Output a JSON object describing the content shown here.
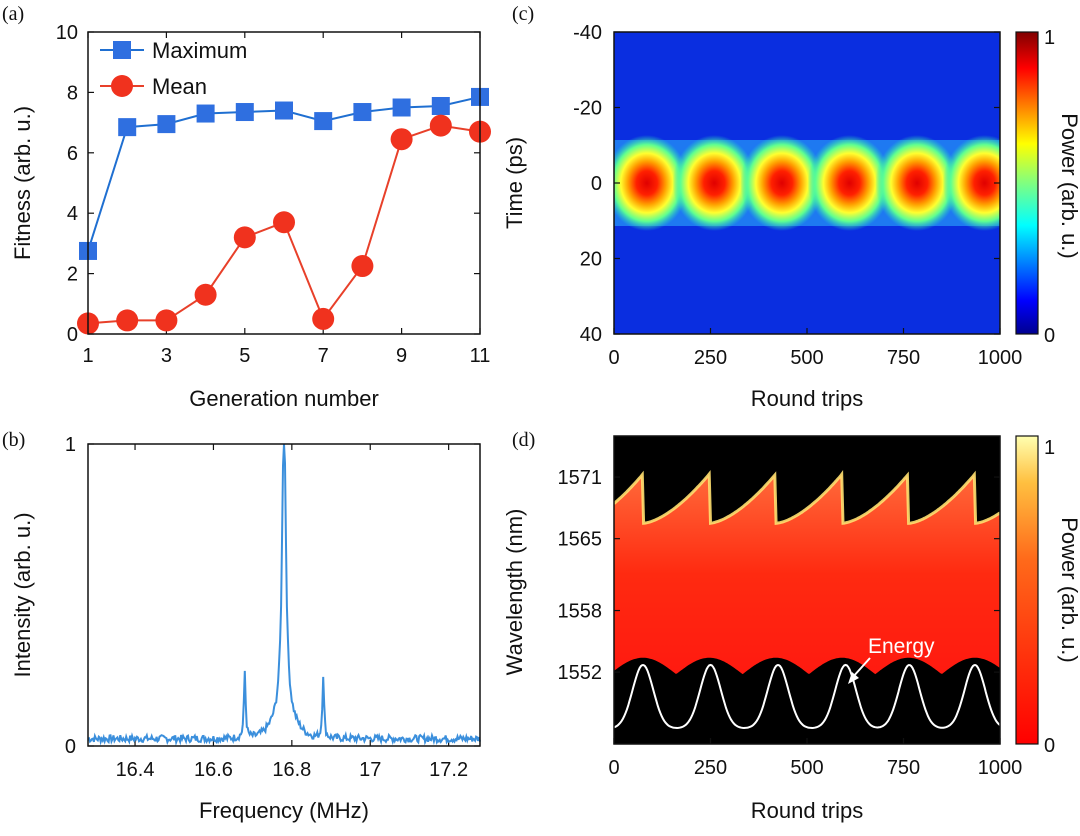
{
  "colors": {
    "maximum": "#1f6fd1",
    "maximum_marker": "#2f6fe0",
    "mean": "#e8402a",
    "mean_marker": "#f0321e",
    "spectrum": "#3b8fdc",
    "energy": "#ffffff",
    "jet_low": "#00008f",
    "jet_high": "#800000",
    "hot_low": "#ff0000",
    "hot_high": "#ffffb0"
  },
  "chart_data": [
    {
      "panel": "(a)",
      "type": "line",
      "xlabel": "Generation number",
      "ylabel": "Fitness (arb. u.)",
      "xlim": [
        1,
        11
      ],
      "ylim": [
        0,
        10
      ],
      "xticks": [
        "1",
        "3",
        "5",
        "7",
        "9",
        "11"
      ],
      "yticks": [
        "0",
        "2",
        "4",
        "6",
        "8",
        "10"
      ],
      "legend_position": "top-left",
      "x": [
        1,
        2,
        3,
        4,
        5,
        6,
        7,
        8,
        9,
        10,
        11
      ],
      "series": [
        {
          "name": "Maximum",
          "marker": "square",
          "values": [
            2.75,
            6.85,
            6.95,
            7.3,
            7.35,
            7.4,
            7.05,
            7.35,
            7.5,
            7.55,
            7.85
          ]
        },
        {
          "name": "Mean",
          "marker": "circle",
          "values": [
            0.35,
            0.45,
            0.45,
            1.3,
            3.2,
            3.7,
            0.5,
            2.25,
            6.45,
            6.9,
            6.7
          ]
        }
      ]
    },
    {
      "panel": "(b)",
      "type": "line",
      "xlabel": "Frequency (MHz)",
      "ylabel": "Intensity (arb. u.)",
      "xlim": [
        16.28,
        17.28
      ],
      "ylim": [
        0,
        1
      ],
      "xticks": [
        "16.4",
        "16.6",
        "16.8",
        "17",
        "17.2"
      ],
      "yticks": [
        "0",
        "1"
      ],
      "peaks": [
        {
          "frequency": 16.78,
          "intensity": 1.0
        },
        {
          "frequency": 16.68,
          "intensity": 0.22
        },
        {
          "frequency": 16.88,
          "intensity": 0.21
        }
      ],
      "noise_floor": 0.03
    },
    {
      "panel": "(c)",
      "type": "heatmap",
      "xlabel": "Round trips",
      "ylabel": "Time (ps)",
      "colorbar_label": "Power (arb. u.)",
      "colorbar_ticks": [
        "0",
        "1"
      ],
      "colormap": "jet",
      "xlim": [
        0,
        1000
      ],
      "ylim": [
        -40,
        40
      ],
      "xticks": [
        "0",
        "250",
        "500",
        "750",
        "1000"
      ],
      "yticks": [
        "-40",
        "-20",
        "0",
        "20",
        "40"
      ],
      "pulse_centers": [
        85,
        260,
        435,
        610,
        785,
        960
      ],
      "pulse_time_center": 0
    },
    {
      "panel": "(d)",
      "type": "heatmap",
      "xlabel": "Round trips",
      "ylabel": "Wavelength (nm)",
      "colorbar_label": "Power (arb. u.)",
      "colorbar_ticks": [
        "0",
        "1"
      ],
      "colormap": "hot",
      "xlim": [
        0,
        1000
      ],
      "ylim": [
        1545,
        1575
      ],
      "xticks": [
        "0",
        "250",
        "500",
        "750",
        "1000"
      ],
      "yticks": [
        "1552",
        "1558",
        "1565",
        "1571"
      ],
      "annotation": "Energy",
      "energy_peaks": [
        75,
        250,
        425,
        600,
        765,
        935
      ]
    }
  ]
}
